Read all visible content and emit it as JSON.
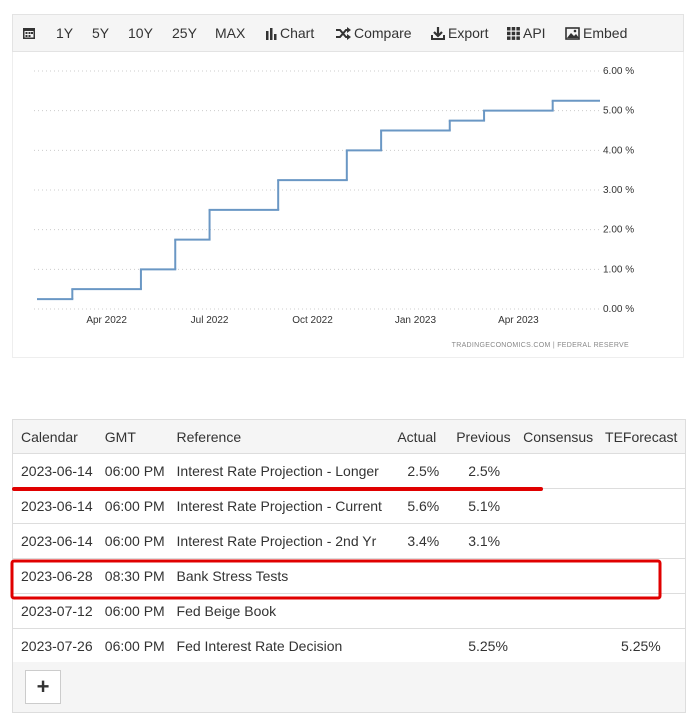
{
  "toolbar": {
    "items": [
      "1Y",
      "5Y",
      "10Y",
      "25Y",
      "MAX",
      "Chart",
      "Compare",
      "Export",
      "API",
      "Embed"
    ]
  },
  "chart_data": {
    "type": "step-line",
    "x": [
      "2022-02",
      "2022-03",
      "2022-05",
      "2022-06",
      "2022-07",
      "2022-09",
      "2022-11",
      "2022-12",
      "2023-02",
      "2023-03",
      "2023-05"
    ],
    "values": [
      0.25,
      0.5,
      1.0,
      1.75,
      2.5,
      3.25,
      4.0,
      4.5,
      4.75,
      5.0,
      5.25
    ],
    "color": "#6a97c4",
    "xlim": [
      "2022-02",
      "2023-06"
    ],
    "xticks": [
      {
        "value": "2022-04",
        "label": "Apr 2022"
      },
      {
        "value": "2022-07",
        "label": "Jul 2022"
      },
      {
        "value": "2022-10",
        "label": "Oct 2022"
      },
      {
        "value": "2023-01",
        "label": "Jan 2023"
      },
      {
        "value": "2023-04",
        "label": "Apr 2023"
      }
    ],
    "ylim": [
      0,
      6
    ],
    "yticks": [
      {
        "value": 0,
        "label": "0.00 %"
      },
      {
        "value": 1,
        "label": "1.00 %"
      },
      {
        "value": 2,
        "label": "2.00 %"
      },
      {
        "value": 3,
        "label": "3.00 %"
      },
      {
        "value": 4,
        "label": "4.00 %"
      },
      {
        "value": 5,
        "label": "5.00 %"
      },
      {
        "value": 6,
        "label": "6.00 %"
      }
    ],
    "grid": true,
    "source": "TRADINGECONOMICS.COM  |  FEDERAL RESERVE"
  },
  "table": {
    "columns": [
      "Calendar",
      "GMT",
      "Reference",
      "Actual",
      "Previous",
      "Consensus",
      "TEForecast"
    ],
    "rows": [
      {
        "date": "2023-06-14",
        "time": "06:00 PM",
        "reference": "Interest Rate Projection - Longer",
        "actual": "2.5%",
        "previous": "2.5%"
      },
      {
        "date": "2023-06-14",
        "time": "06:00 PM",
        "reference": "Interest Rate Projection - Current",
        "actual": "5.6%",
        "previous": "5.1%"
      },
      {
        "date": "2023-06-14",
        "time": "06:00 PM",
        "reference": "Interest Rate Projection - 2nd Yr",
        "actual": "3.4%",
        "previous": "3.1%"
      },
      {
        "date": "2023-06-28",
        "time": "08:30 PM",
        "reference": "Bank Stress Tests"
      },
      {
        "date": "2023-07-12",
        "time": "06:00 PM",
        "reference": "Fed Beige Book"
      },
      {
        "date": "2023-07-26",
        "time": "06:00 PM",
        "reference": "Fed Interest Rate Decision",
        "previous": "5.25%",
        "teforecast": "5.25%"
      }
    ]
  }
}
